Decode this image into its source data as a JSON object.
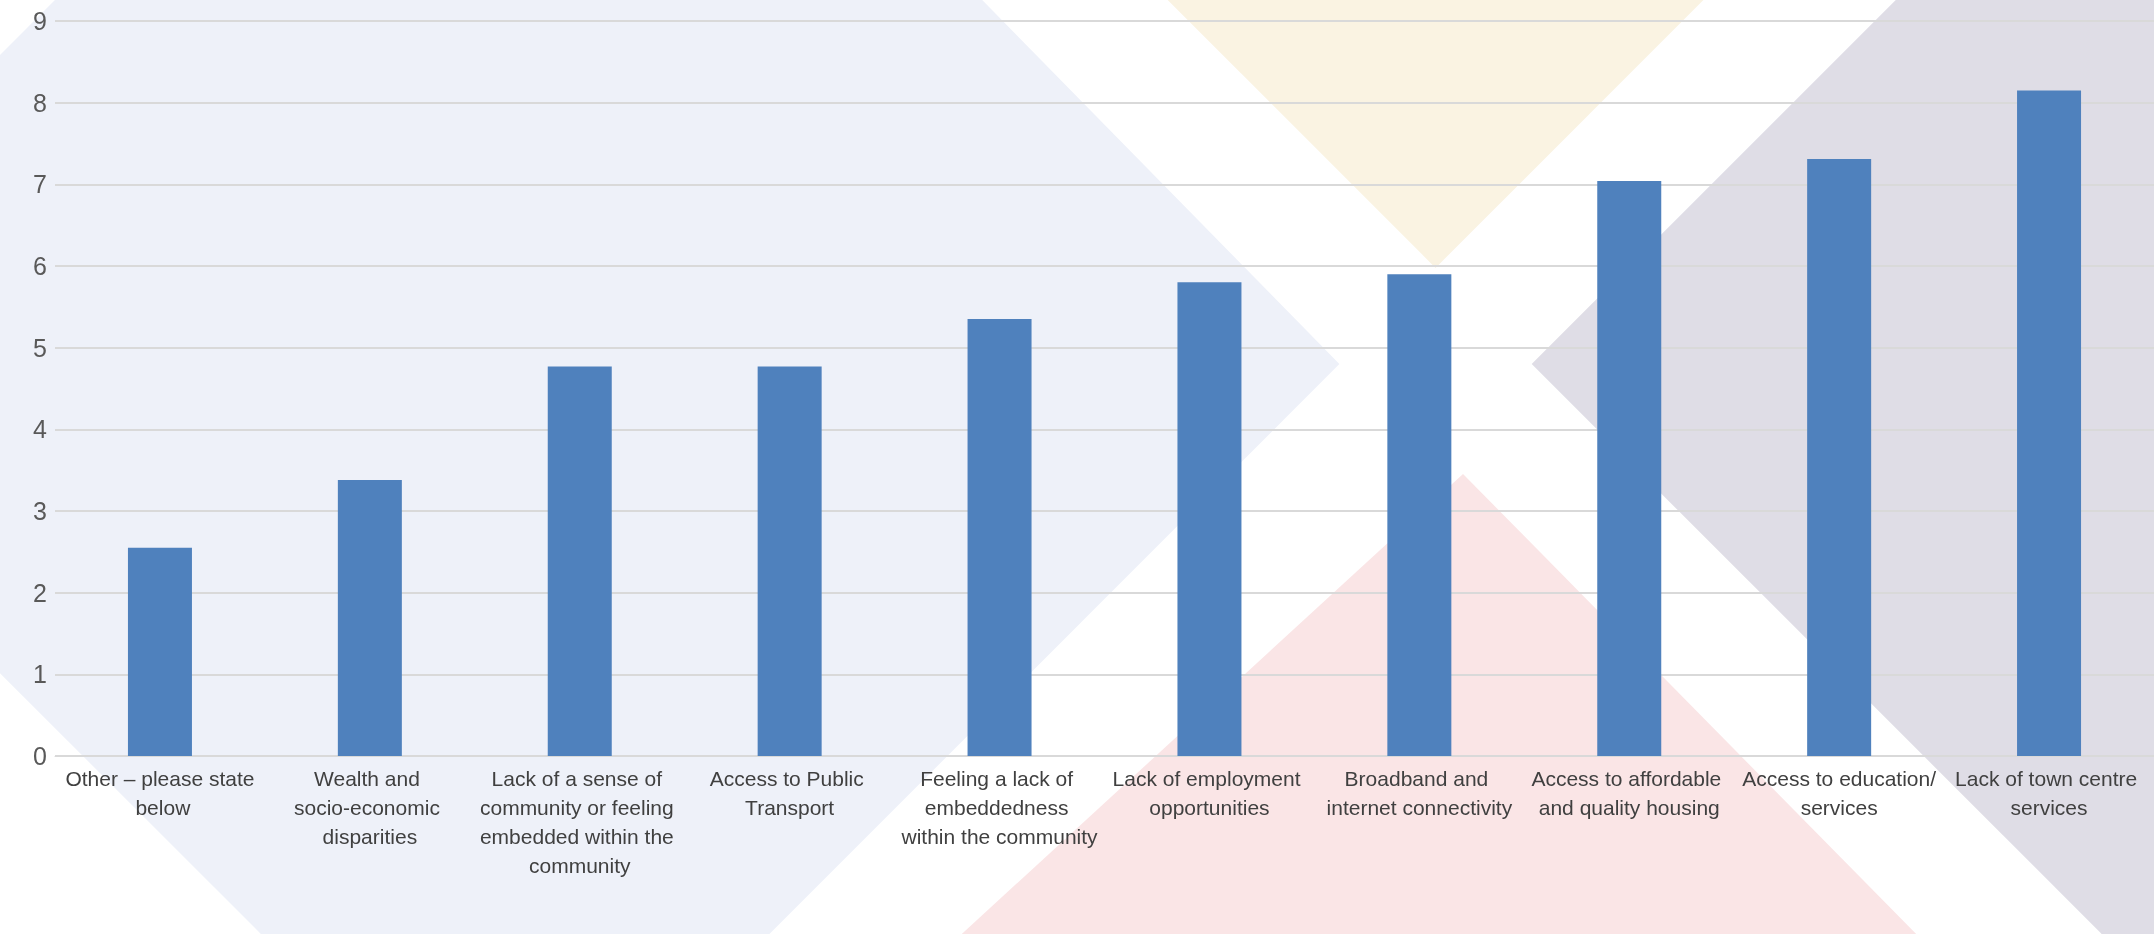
{
  "chart_data": {
    "type": "bar",
    "categories": [
      "Other – please state below",
      "Wealth and socio-economic disparities",
      "Lack of a sense of community or feeling embedded within the community",
      "Access to Public Transport",
      "Feeling a lack of embeddedness within the community",
      "Lack of employment opportunities",
      "Broadband and internet connectivity",
      "Access to affordable and quality housing",
      "Access to education/services",
      "Lack of town centre services"
    ],
    "values": [
      2.55,
      3.38,
      4.77,
      4.77,
      5.35,
      5.8,
      5.9,
      7.04,
      7.31,
      8.15
    ],
    "color": "#4f81bd",
    "ylim": [
      0,
      9
    ],
    "yticks": [
      0,
      1,
      2,
      3,
      4,
      5,
      6,
      7,
      8,
      9
    ],
    "grid": "y"
  }
}
